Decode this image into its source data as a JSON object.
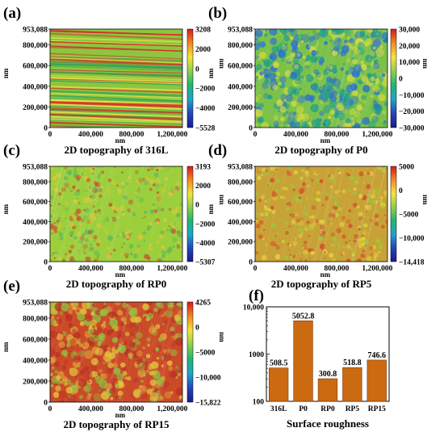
{
  "panels": [
    {
      "letter": "(a)",
      "caption": "2D topography of 316L",
      "ylabel": "nm",
      "xlabel": "nm",
      "cbar_unit": "nm",
      "y_ticks": [
        "953,088",
        "800,000",
        "600,000",
        "400,000",
        "200,000",
        "0"
      ],
      "x_ticks": [
        "0",
        "400,000",
        "800,000",
        "1,200,000"
      ],
      "cbar_ticks": [
        "3208",
        "2000",
        "0",
        "−2000",
        "−4000",
        "−5528"
      ],
      "texture": "stripes",
      "colors": {
        "base": "#8cc63f",
        "accent1": "#d4312a",
        "accent2": "#e9e24a",
        "accent3": "#3aa655"
      }
    },
    {
      "letter": "(b)",
      "caption": "2D topography of P0",
      "ylabel": "nm",
      "xlabel": "nm",
      "cbar_unit": "nm",
      "y_ticks": [
        "953,088",
        "800,000",
        "600,000",
        "400,000",
        "200,000",
        "0"
      ],
      "x_ticks": [
        "0",
        "400,000",
        "800,000",
        "1,200,000"
      ],
      "cbar_ticks": [
        "30,000",
        "20,000",
        "10,000",
        "0",
        "−10,000",
        "−20,000",
        "−30,000"
      ],
      "texture": "mottled",
      "colors": {
        "base": "#7cc24a",
        "accent1": "#2b6fd1",
        "accent2": "#d9d941",
        "accent3": "#1f9e8a"
      }
    },
    {
      "letter": "(c)",
      "caption": "2D topography of RP0",
      "ylabel": "nm",
      "xlabel": "nm",
      "cbar_unit": "nm",
      "y_ticks": [
        "953,088",
        "800,000",
        "600,000",
        "400,000",
        "200,000",
        "0"
      ],
      "x_ticks": [
        "0",
        "400,000",
        "800,000",
        "1,200,000"
      ],
      "cbar_ticks": [
        "3193",
        "2000",
        "0",
        "−2000",
        "−4000",
        "−5307"
      ],
      "texture": "grainy",
      "colors": {
        "base": "#9ccf3c",
        "accent1": "#e2c53a",
        "accent2": "#5cb85c",
        "accent3": "#c9532e"
      }
    },
    {
      "letter": "(d)",
      "caption": "2D topography of RP5",
      "ylabel": "nm",
      "xlabel": "nm",
      "cbar_unit": "nm",
      "y_ticks": [
        "953,088",
        "800,000",
        "600,000",
        "400,000",
        "200,000",
        "0"
      ],
      "x_ticks": [
        "0",
        "400,000",
        "800,000",
        "1,200,000"
      ],
      "cbar_ticks": [
        "5000",
        "0",
        "−5000",
        "−10,000",
        "−14,418"
      ],
      "texture": "grainy",
      "colors": {
        "base": "#c8a236",
        "accent1": "#d64a2a",
        "accent2": "#9dc43d",
        "accent3": "#e6d33f"
      }
    },
    {
      "letter": "(e)",
      "caption": "2D topography of RP15",
      "ylabel": "nm",
      "xlabel": "nm",
      "cbar_unit": "nm",
      "y_ticks": [
        "953,088",
        "800,000",
        "600,000",
        "400,000",
        "200,000",
        "0"
      ],
      "x_ticks": [
        "0",
        "400,000",
        "800,000",
        "1,200,000"
      ],
      "cbar_ticks": [
        "4265",
        "0",
        "−5000",
        "−10,000",
        "−15,822"
      ],
      "texture": "mottled",
      "colors": {
        "base": "#cc4a28",
        "accent1": "#8fc23f",
        "accent2": "#e2c03c",
        "accent3": "#b83324"
      }
    }
  ],
  "colormap": [
    "#d7191c",
    "#f08a24",
    "#f5e43a",
    "#8cd04a",
    "#22b573",
    "#1fa5c9",
    "#2447b8",
    "#1a1a8c"
  ],
  "chart_data": {
    "type": "bar",
    "letter": "(f)",
    "categories": [
      "316L",
      "P0",
      "RP0",
      "RP5",
      "RP15"
    ],
    "values": [
      508.5,
      5052.8,
      300.8,
      518.8,
      746.6
    ],
    "value_labels": [
      "508.5",
      "5052.8",
      "300.8",
      "518.8",
      "746.6"
    ],
    "xlabel": "Surface roughness",
    "ylabel": "",
    "yscale": "log",
    "ylim": [
      100,
      10000
    ],
    "y_ticks": [
      100,
      1000,
      10000
    ],
    "y_tick_labels": [
      "100",
      "1000",
      "10,000"
    ],
    "grid": false,
    "bar_color": "#cc6a12",
    "bar_edge": "#7a3a06"
  }
}
